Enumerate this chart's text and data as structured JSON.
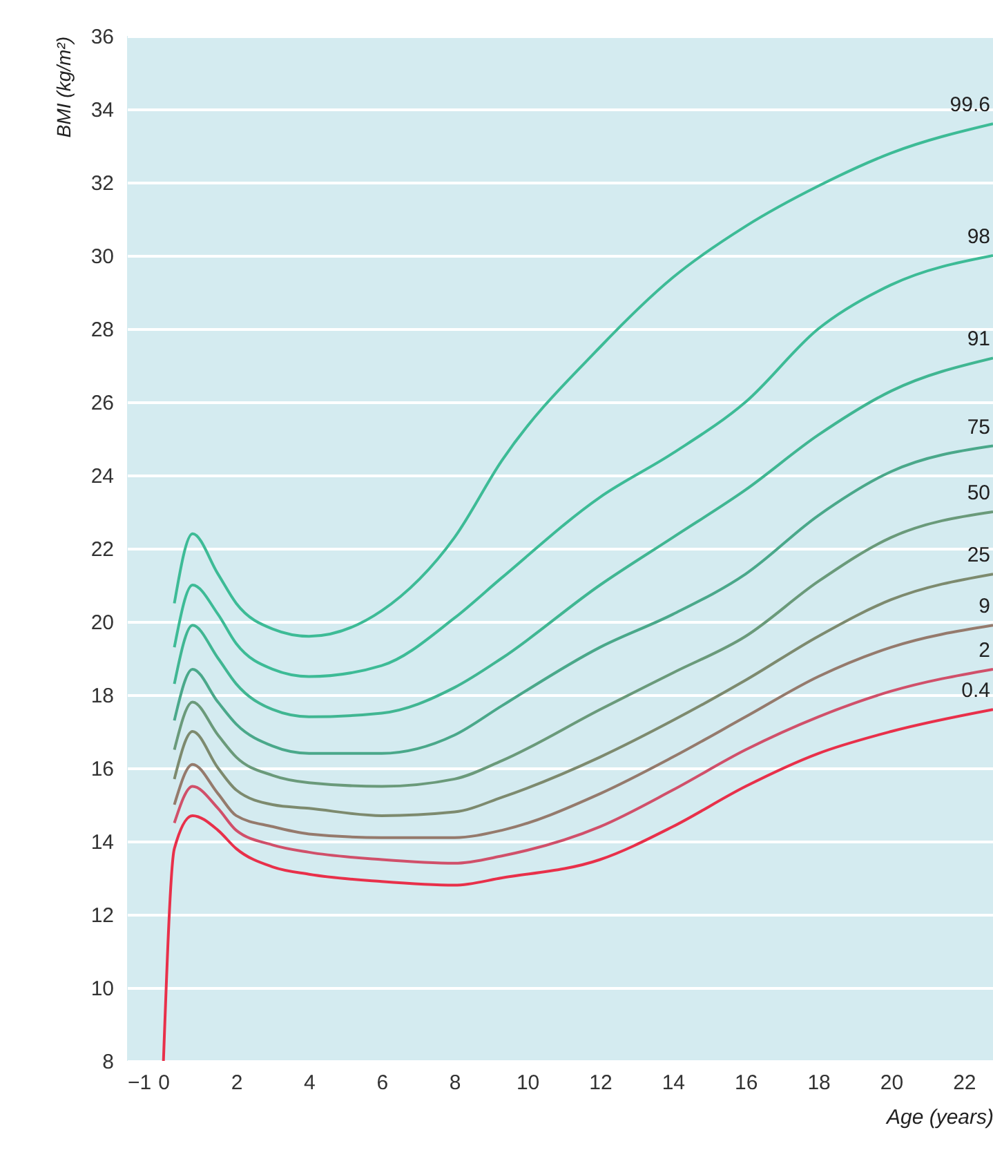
{
  "chart_data": {
    "type": "line",
    "xlabel": "Age (years)",
    "ylabel": "BMI (kg/m²)",
    "xlim": [
      -1,
      22.8
    ],
    "ylim": [
      8,
      36
    ],
    "xticks": [
      -1,
      0,
      2,
      4,
      6,
      8,
      10,
      12,
      14,
      16,
      18,
      20,
      22
    ],
    "yticks": [
      8,
      10,
      12,
      14,
      16,
      18,
      20,
      22,
      24,
      26,
      28,
      30,
      32,
      34,
      36
    ],
    "grid": "y",
    "x": [
      0,
      0.3,
      0.8,
      1.5,
      2,
      3,
      4,
      6,
      8,
      9.3,
      12,
      14,
      16,
      18,
      20,
      22.8
    ],
    "series": [
      {
        "name": "99.6",
        "color": "#3dbb96",
        "values": [
          null,
          20.5,
          22.4,
          21.3,
          20.5,
          19.8,
          19.6,
          20.3,
          22.3,
          24.4,
          27.5,
          29.4,
          30.8,
          31.9,
          32.8,
          33.6
        ]
      },
      {
        "name": "98",
        "color": "#3dbb96",
        "values": [
          null,
          19.3,
          21.0,
          20.2,
          19.4,
          18.7,
          18.5,
          18.8,
          20.1,
          21.2,
          23.4,
          24.6,
          26.0,
          28.0,
          29.2,
          30.0
        ]
      },
      {
        "name": "91",
        "color": "#40b692",
        "values": [
          null,
          18.3,
          19.9,
          19.0,
          18.3,
          17.6,
          17.4,
          17.5,
          18.2,
          19.0,
          21.0,
          22.3,
          23.6,
          25.1,
          26.3,
          27.2
        ]
      },
      {
        "name": "75",
        "color": "#4aa88a",
        "values": [
          null,
          17.3,
          18.7,
          17.8,
          17.2,
          16.6,
          16.4,
          16.4,
          16.9,
          17.7,
          19.3,
          20.2,
          21.3,
          22.9,
          24.1,
          24.8
        ]
      },
      {
        "name": "50",
        "color": "#6a9a7a",
        "values": [
          null,
          16.5,
          17.8,
          16.9,
          16.3,
          15.8,
          15.6,
          15.5,
          15.7,
          16.2,
          17.6,
          18.6,
          19.6,
          21.1,
          22.3,
          23.0
        ]
      },
      {
        "name": "25",
        "color": "#7d8a6e",
        "values": [
          null,
          15.7,
          17.0,
          16.0,
          15.4,
          15.0,
          14.9,
          14.7,
          14.8,
          15.2,
          16.3,
          17.3,
          18.4,
          19.6,
          20.6,
          21.3
        ]
      },
      {
        "name": "9",
        "color": "#957a6c",
        "values": [
          null,
          15.0,
          16.1,
          15.3,
          14.7,
          14.4,
          14.2,
          14.1,
          14.1,
          14.3,
          15.3,
          16.3,
          17.4,
          18.5,
          19.3,
          19.9
        ]
      },
      {
        "name": "2",
        "color": "#d0506a",
        "values": [
          null,
          14.5,
          15.5,
          14.9,
          14.3,
          13.9,
          13.7,
          13.5,
          13.4,
          13.6,
          14.4,
          15.4,
          16.5,
          17.4,
          18.1,
          18.7
        ]
      },
      {
        "name": "0.4",
        "color": "#e8304a",
        "values": [
          8,
          13.8,
          14.7,
          14.3,
          13.8,
          13.3,
          13.1,
          12.9,
          12.8,
          13.0,
          13.5,
          14.4,
          15.5,
          16.4,
          17.0,
          17.6
        ]
      }
    ]
  }
}
